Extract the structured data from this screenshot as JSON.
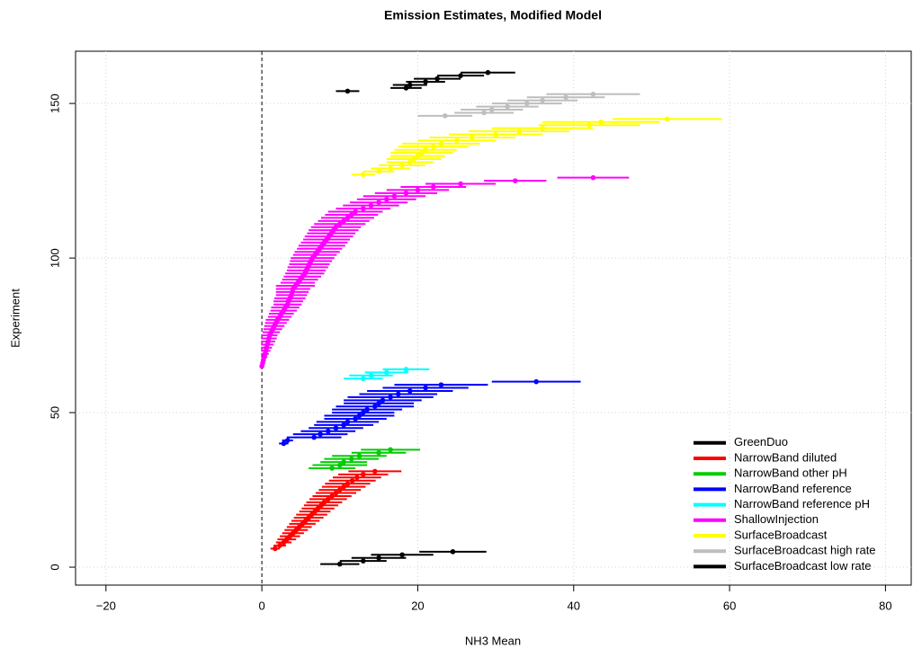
{
  "chart_data": {
    "type": "errorbar",
    "title": "Emission Estimates, Modified Model",
    "x_label": "NH3 Mean",
    "y_label": "Experiment",
    "xlim": [
      -23.9,
      83.3
    ],
    "ylim": [
      -5.8,
      166.9
    ],
    "xticks": [
      {
        "value": -20,
        "label": "−20"
      },
      0,
      20,
      40,
      60,
      80
    ],
    "yticks": [
      0,
      50,
      100,
      150
    ],
    "grid": true,
    "reference_line": 0,
    "legend": "bottomright",
    "series": [
      {
        "name": "GreenDuo",
        "color": "#000000",
        "y": [
          154,
          155,
          156,
          157,
          158,
          159,
          160
        ],
        "values": [
          11,
          18.5,
          19,
          21,
          22.5,
          25.5,
          29
        ],
        "errors": [
          1.5,
          2,
          2.2,
          2.5,
          3,
          3,
          3.5
        ]
      },
      {
        "name": "NarrowBand diluted",
        "color": "#FF0000",
        "y": [
          6,
          7,
          8,
          9,
          10,
          11,
          12,
          13,
          14,
          15,
          16,
          17,
          18,
          19,
          20,
          21,
          22,
          23,
          24,
          25,
          26,
          27,
          28,
          29,
          30,
          31
        ],
        "values": [
          1.7,
          2.3,
          2.8,
          3.2,
          3.6,
          4.0,
          4.4,
          4.8,
          5.2,
          5.6,
          6.0,
          6.4,
          6.8,
          7.2,
          7.6,
          8.0,
          8.5,
          9.0,
          9.5,
          10.0,
          10.5,
          11.0,
          11.6,
          12.2,
          13,
          14.5
        ],
        "errors": [
          0.6,
          0.8,
          1,
          1.2,
          1.3,
          1.4,
          1.5,
          1.6,
          1.7,
          1.8,
          1.9,
          2,
          2,
          2.1,
          2.2,
          2.3,
          2.4,
          2.5,
          2.6,
          2.7,
          2.8,
          2.9,
          3,
          3.1,
          3.2,
          3.4
        ]
      },
      {
        "name": "NarrowBand other pH",
        "color": "#00CD00",
        "y": [
          32,
          33,
          34,
          35,
          36,
          37,
          38
        ],
        "values": [
          9,
          10,
          10.5,
          11.5,
          12.5,
          15,
          16.5
        ],
        "errors": [
          3,
          3.5,
          3,
          3.5,
          3.5,
          3.5,
          3.8
        ]
      },
      {
        "name": "NarrowBand reference",
        "color": "#0000FF",
        "y": [
          40,
          41,
          42,
          43,
          44,
          45,
          46,
          47,
          48,
          49,
          50,
          51,
          52,
          53,
          54,
          55,
          56,
          57,
          58,
          59,
          60
        ],
        "values": [
          2.8,
          3.3,
          6.7,
          7.5,
          8.5,
          9.5,
          10.5,
          11,
          12,
          12.5,
          13,
          13.5,
          14.5,
          15,
          15.5,
          16.5,
          17.5,
          19,
          21,
          23,
          35.2
        ],
        "errors": [
          0.6,
          0.7,
          3.5,
          3.5,
          3.5,
          3.5,
          3.8,
          4,
          4,
          4.5,
          4,
          4.5,
          5,
          4.5,
          5,
          5.5,
          5,
          5.5,
          5.5,
          6,
          5.7
        ]
      },
      {
        "name": "NarrowBand reference pH",
        "color": "#00FFFF",
        "y": [
          61,
          62,
          63,
          64
        ],
        "values": [
          13,
          14,
          16,
          18.5
        ],
        "errors": [
          2.5,
          2.8,
          2.8,
          3
        ]
      },
      {
        "name": "ShallowInjection",
        "color": "#FF00FF",
        "y": [
          65,
          66,
          67,
          68,
          69,
          70,
          71,
          72,
          73,
          74,
          75,
          76,
          77,
          78,
          79,
          80,
          81,
          82,
          83,
          84,
          85,
          86,
          87,
          88,
          89,
          90,
          91,
          92,
          93,
          94,
          95,
          96,
          97,
          98,
          99,
          100,
          101,
          102,
          103,
          104,
          105,
          106,
          107,
          108,
          109,
          110,
          111,
          112,
          113,
          114,
          115,
          116,
          117,
          118,
          119,
          120,
          121,
          122,
          123,
          124,
          125,
          126
        ],
        "values": [
          0,
          0.1,
          0.2,
          0.3,
          0.4,
          0.5,
          0.6,
          0.7,
          0.8,
          0.9,
          1.0,
          1.2,
          1.4,
          1.6,
          1.8,
          2.0,
          2.3,
          2.5,
          2.8,
          3.0,
          3.3,
          3.4,
          3.6,
          3.8,
          3.9,
          4.0,
          4.3,
          4.6,
          4.9,
          5.2,
          5.5,
          5.7,
          5.9,
          6.1,
          6.3,
          6.5,
          6.8,
          7.1,
          7.4,
          7.7,
          8.0,
          8.3,
          8.6,
          8.9,
          9.2,
          9.5,
          10,
          10.5,
          11,
          11.5,
          12,
          13,
          14,
          15,
          16,
          17,
          18.5,
          20,
          22,
          25.5,
          32.5,
          42.5
        ],
        "errors": [
          0.1,
          0.2,
          0.3,
          0.4,
          0.5,
          0.6,
          0.7,
          0.8,
          0.9,
          1,
          1,
          1.1,
          1.2,
          1.3,
          1.4,
          1.5,
          1.5,
          1.6,
          1.7,
          1.8,
          1.8,
          1.9,
          2,
          2,
          2.1,
          2.2,
          2.5,
          2.2,
          2.3,
          2.4,
          2.5,
          2.5,
          2.6,
          2.6,
          2.7,
          2.8,
          2.8,
          2.9,
          2.9,
          3,
          3,
          3,
          3.1,
          3.1,
          3.2,
          3.2,
          3.3,
          3.3,
          3.4,
          3.4,
          3.5,
          3.5,
          3.6,
          3.7,
          3.8,
          4,
          4,
          4,
          4.2,
          4.5,
          4,
          4.6
        ]
      },
      {
        "name": "SurfaceBroadcast",
        "color": "#FFFF00",
        "y": [
          127,
          128,
          129,
          130,
          131,
          132,
          133,
          134,
          135,
          136,
          137,
          138,
          139,
          140,
          141,
          142,
          143,
          144,
          145
        ],
        "values": [
          13,
          15,
          16.5,
          18,
          19,
          19.5,
          20,
          20.5,
          21,
          22,
          23,
          25,
          27,
          30,
          33,
          36,
          42,
          43.5,
          52
        ],
        "errors": [
          1.5,
          2,
          2.5,
          3,
          3,
          3.5,
          3.5,
          4,
          4,
          4.5,
          5,
          5,
          5.5,
          6,
          6.5,
          6.5,
          6.5,
          7.5,
          7
        ]
      },
      {
        "name": "SurfaceBroadcast high rate",
        "color": "#BEBEBE",
        "y": [
          146,
          147,
          148,
          149,
          150,
          151,
          152,
          153
        ],
        "values": [
          23.5,
          28.5,
          29.5,
          31.5,
          34,
          36,
          39,
          42.5
        ],
        "errors": [
          3.5,
          3.8,
          4,
          4,
          4.5,
          4.5,
          5,
          6
        ]
      },
      {
        "name": "SurfaceBroadcast low rate",
        "color": "#000000",
        "y": [
          1,
          2,
          3,
          4,
          5
        ],
        "values": [
          10,
          13,
          15,
          18,
          24.5
        ],
        "errors": [
          2.5,
          3,
          3.5,
          4,
          4.3
        ]
      }
    ]
  }
}
